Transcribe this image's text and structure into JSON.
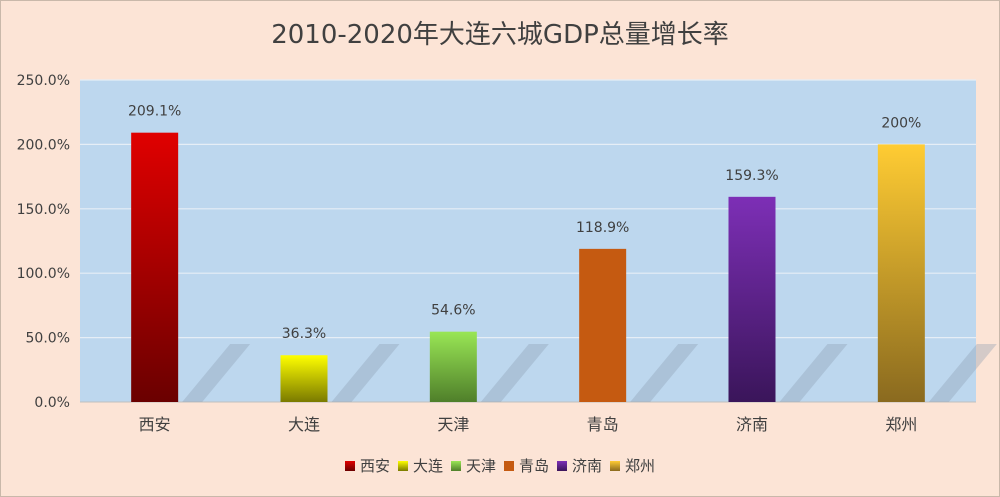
{
  "chart_data": {
    "type": "bar",
    "title": "2010-2020年大连六城GDP总量增长率",
    "categories": [
      "西安",
      "大连",
      "天津",
      "青岛",
      "济南",
      "郑州"
    ],
    "values": [
      209.1,
      36.3,
      54.6,
      118.9,
      159.3,
      200
    ],
    "data_labels": [
      "209.1%",
      "36.3%",
      "54.6%",
      "118.9%",
      "159.3%",
      "200%"
    ],
    "ylim": [
      0,
      250
    ],
    "y_ticks": [
      "0.0%",
      "50.0%",
      "100.0%",
      "150.0%",
      "200.0%",
      "250.0%"
    ],
    "grid": true,
    "legend": "bottom",
    "colors": [
      {
        "top": "#e00000",
        "bottom": "#6a0000"
      },
      {
        "top": "#ffff00",
        "bottom": "#7a7a00"
      },
      {
        "top": "#99e655",
        "bottom": "#4f7f2a"
      },
      {
        "top": "#c55a11",
        "bottom": "#c55a11"
      },
      {
        "top": "#7d2fb6",
        "bottom": "#3a155a"
      },
      {
        "top": "#ffcc33",
        "bottom": "#8a6a1f"
      }
    ],
    "plot_background": "#bdd7ee",
    "page_background": "#fce4d6"
  }
}
